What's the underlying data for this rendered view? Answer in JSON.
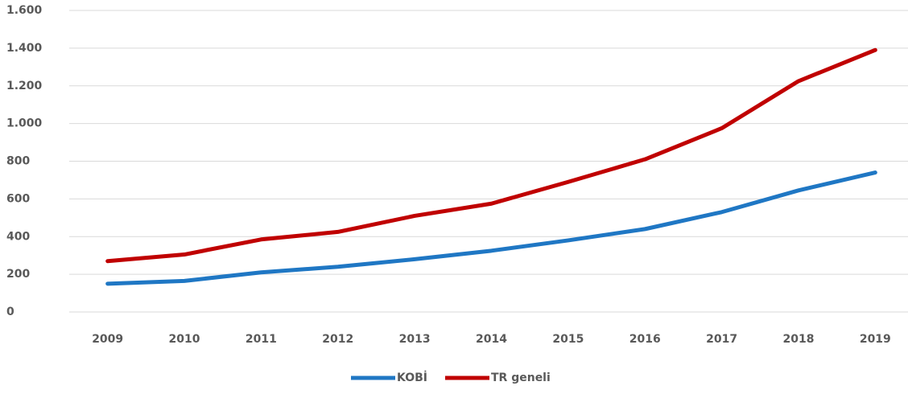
{
  "chart_data": {
    "type": "line",
    "categories": [
      "2009",
      "2010",
      "2011",
      "2012",
      "2013",
      "2014",
      "2015",
      "2016",
      "2017",
      "2018",
      "2019"
    ],
    "series": [
      {
        "name": "KOBİ",
        "color": "#1f77c4",
        "values": [
          150,
          165,
          210,
          240,
          280,
          325,
          380,
          440,
          530,
          645,
          740
        ]
      },
      {
        "name": "TR geneli",
        "color": "#c00000",
        "values": [
          270,
          305,
          385,
          425,
          510,
          575,
          690,
          810,
          975,
          1225,
          1390
        ]
      }
    ],
    "ylim": [
      0,
      1600
    ],
    "yticks": [
      0,
      200,
      400,
      600,
      800,
      {
        "value": 1000,
        "label": "1.000"
      },
      {
        "value": 1200,
        "label": "1.200"
      },
      {
        "value": 1400,
        "label": "1.400"
      },
      {
        "value": 1600,
        "label": "1.600"
      }
    ],
    "grid": true,
    "legend": "bottom"
  }
}
